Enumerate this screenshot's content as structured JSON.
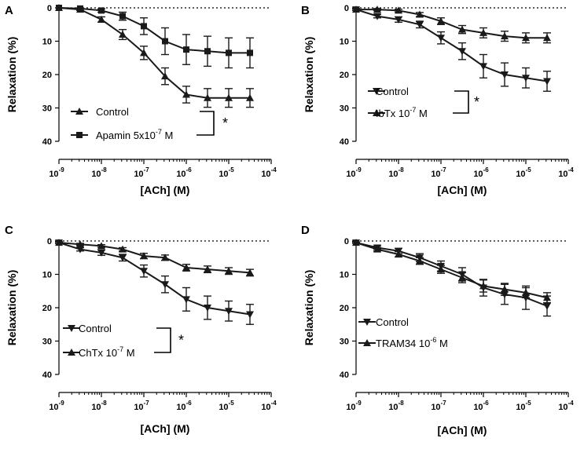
{
  "figure": {
    "description_x_unit": "log10 [ACh] (M)",
    "significance_mark": "*"
  },
  "chart_data": [
    {
      "type": "line",
      "panel": "A",
      "xlabel": "[ACh] (M)",
      "ylabel": "Relaxation (%)",
      "x_scale": "log10",
      "xlim": [
        -9,
        -4
      ],
      "ylim": [
        0,
        40
      ],
      "y_inverted": true,
      "x_tick_base": "10",
      "x_ticks": [
        "-9",
        "-8",
        "-7",
        "-6",
        "-5",
        "-4"
      ],
      "y_ticks": [
        "0",
        "10",
        "20",
        "30",
        "40"
      ],
      "legend_position": "bottom-left",
      "significance": "*",
      "x": [
        -9,
        -8.5,
        -8,
        -7.5,
        -7,
        -6.5,
        -6,
        -5.5,
        -5,
        -4.5
      ],
      "series": [
        {
          "name": "Control",
          "marker": "triangle-up",
          "values": [
            0,
            0.5,
            3.5,
            8,
            13.5,
            20.5,
            26,
            27,
            27,
            27
          ],
          "errors": [
            0,
            0.3,
            0.8,
            1.5,
            2,
            2.5,
            2.5,
            2.8,
            2.8,
            2.8
          ]
        },
        {
          "name": "Apamin 5x10",
          "name_exp": "-7",
          "name_unit": " M",
          "marker": "square",
          "values": [
            0,
            0.2,
            0.8,
            2.5,
            5.5,
            10,
            12.5,
            13,
            13.5,
            13.5
          ],
          "errors": [
            0,
            0.2,
            0.5,
            1.2,
            2.5,
            4,
            4.5,
            4.5,
            4.5,
            4.5
          ]
        }
      ]
    },
    {
      "type": "line",
      "panel": "B",
      "xlabel": "[ACh] (M)",
      "ylabel": "Relaxation (%)",
      "x_scale": "log10",
      "xlim": [
        -9,
        -4
      ],
      "ylim": [
        0,
        40
      ],
      "y_inverted": true,
      "x_tick_base": "10",
      "x_ticks": [
        "-9",
        "-8",
        "-7",
        "-6",
        "-5",
        "-4"
      ],
      "y_ticks": [
        "0",
        "10",
        "20",
        "30",
        "40"
      ],
      "legend_position": "middle-left",
      "significance": "*",
      "x": [
        -9,
        -8.5,
        -8,
        -7.5,
        -7,
        -6.5,
        -6,
        -5.5,
        -5,
        -4.5
      ],
      "series": [
        {
          "name": "Control",
          "marker": "triangle-down",
          "values": [
            0.5,
            2.5,
            3.5,
            5,
            9,
            13,
            17.5,
            20,
            21,
            22
          ],
          "errors": [
            0.3,
            0.5,
            0.8,
            1,
            1.8,
            2.5,
            3.5,
            3.5,
            3,
            3
          ]
        },
        {
          "name": "IbTx 10",
          "name_exp": "-7",
          "name_unit": " M",
          "marker": "triangle-up",
          "values": [
            0.5,
            0.5,
            0.8,
            2,
            4,
            6.5,
            7.5,
            8.5,
            9,
            9
          ],
          "errors": [
            0.2,
            0.3,
            0.4,
            0.6,
            1,
            1.2,
            1.5,
            1.5,
            1.5,
            1.5
          ]
        }
      ]
    },
    {
      "type": "line",
      "panel": "C",
      "xlabel": "[ACh] (M)",
      "ylabel": "Relaxation (%)",
      "x_scale": "log10",
      "xlim": [
        -9,
        -4
      ],
      "ylim": [
        0,
        40
      ],
      "y_inverted": true,
      "x_tick_base": "10",
      "x_ticks": [
        "-9",
        "-8",
        "-7",
        "-6",
        "-5",
        "-4"
      ],
      "y_ticks": [
        "0",
        "10",
        "20",
        "30",
        "40"
      ],
      "legend_position": "bottom-left",
      "significance": "*",
      "x": [
        -9,
        -8.5,
        -8,
        -7.5,
        -7,
        -6.5,
        -6,
        -5.5,
        -5,
        -4.5
      ],
      "series": [
        {
          "name": "Control",
          "marker": "triangle-down",
          "values": [
            0.5,
            2.5,
            3.5,
            5,
            9,
            13,
            17.5,
            20,
            21,
            22
          ],
          "errors": [
            0.3,
            0.5,
            0.8,
            1,
            1.8,
            2.5,
            3.5,
            3.5,
            3,
            3
          ]
        },
        {
          "name": "ChTx 10",
          "name_exp": "-7",
          "name_unit": " M",
          "marker": "triangle-up",
          "values": [
            0.5,
            1,
            1.5,
            2.5,
            4.5,
            5,
            8,
            8.5,
            9,
            9.5
          ],
          "errors": [
            0.2,
            0.3,
            0.4,
            0.5,
            0.8,
            0.8,
            1,
            1,
            1,
            1
          ]
        }
      ]
    },
    {
      "type": "line",
      "panel": "D",
      "xlabel": "[ACh] (M)",
      "ylabel": "Relaxation (%)",
      "x_scale": "log10",
      "xlim": [
        -9,
        -4
      ],
      "ylim": [
        0,
        40
      ],
      "y_inverted": true,
      "x_tick_base": "10",
      "x_ticks": [
        "-9",
        "-8",
        "-7",
        "-6",
        "-5",
        "-4"
      ],
      "y_ticks": [
        "0",
        "10",
        "20",
        "30",
        "40"
      ],
      "legend_position": "bottom-left",
      "significance": "",
      "x": [
        -9,
        -8.5,
        -8,
        -7.5,
        -7,
        -6.5,
        -6,
        -5.5,
        -5,
        -4.5
      ],
      "series": [
        {
          "name": "Control",
          "marker": "triangle-down",
          "values": [
            0.5,
            2,
            3,
            5,
            7.5,
            10,
            14,
            16,
            17,
            19.5
          ],
          "errors": [
            0.2,
            0.5,
            0.8,
            1.2,
            1.5,
            2,
            2.5,
            3,
            3.5,
            3
          ]
        },
        {
          "name": "TRAM34 10",
          "name_exp": "-6",
          "name_unit": " M",
          "marker": "triangle-up",
          "values": [
            0.5,
            2.5,
            4,
            6,
            8.5,
            11,
            13.5,
            14.5,
            15.5,
            17
          ],
          "errors": [
            0.2,
            0.5,
            0.8,
            1,
            1.2,
            1.5,
            1.8,
            1.8,
            1.5,
            1.5
          ]
        }
      ]
    }
  ]
}
